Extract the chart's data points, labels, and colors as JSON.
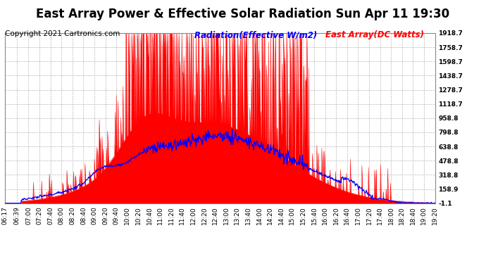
{
  "title": "East Array Power & Effective Solar Radiation Sun Apr 11 19:30",
  "copyright": "Copyright 2021 Cartronics.com",
  "legend_radiation": "Radiation(Effective W/m2)",
  "legend_east": "East Array(DC Watts)",
  "radiation_color": "blue",
  "east_color": "red",
  "background_color": "#ffffff",
  "grid_color": "#b0b0b0",
  "y_ticks": [
    -1.1,
    158.9,
    318.8,
    478.8,
    638.8,
    798.8,
    958.8,
    1118.7,
    1278.7,
    1438.7,
    1598.7,
    1758.7,
    1918.7
  ],
  "ylim": [
    -1.1,
    1918.7
  ],
  "x_labels": [
    "06:17",
    "06:39",
    "07:00",
    "07:20",
    "07:40",
    "08:00",
    "08:20",
    "08:40",
    "09:00",
    "09:20",
    "09:40",
    "10:00",
    "10:20",
    "10:40",
    "11:00",
    "11:20",
    "11:40",
    "12:00",
    "12:20",
    "12:40",
    "13:00",
    "13:20",
    "13:40",
    "14:00",
    "14:20",
    "14:40",
    "15:00",
    "15:20",
    "15:40",
    "16:00",
    "16:20",
    "16:40",
    "17:00",
    "17:20",
    "17:40",
    "18:00",
    "18:20",
    "18:40",
    "19:00",
    "19:20"
  ],
  "title_fontsize": 12,
  "copyright_fontsize": 7.5,
  "legend_fontsize": 8.5,
  "tick_fontsize": 6.5
}
